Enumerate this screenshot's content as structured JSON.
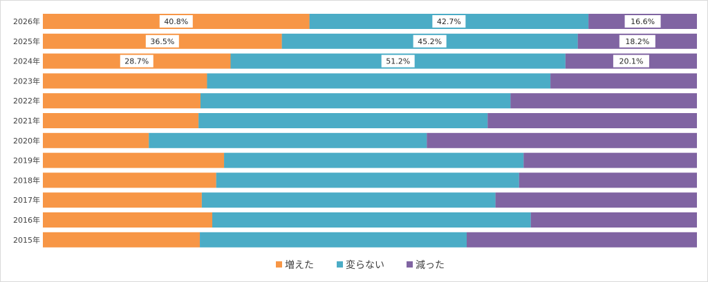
{
  "chart_data": {
    "type": "bar",
    "orientation": "horizontal",
    "stacked": "percent",
    "title": "",
    "categories": [
      "2026年",
      "2025年",
      "2024年",
      "2023年",
      "2022年",
      "2021年",
      "2020年",
      "2019年",
      "2018年",
      "2017年",
      "2016年",
      "2015年"
    ],
    "series": [
      {
        "name": "増えた",
        "color": "#F79646",
        "values": [
          40.8,
          36.5,
          28.7,
          25.1,
          24.1,
          23.8,
          16.2,
          27.7,
          26.5,
          24.3,
          25.9,
          24.0
        ],
        "labels": [
          "40.8%",
          "36.5%",
          "28.7%",
          "",
          "",
          "",
          "",
          "",
          "",
          "",
          "",
          ""
        ]
      },
      {
        "name": "変らない",
        "color": "#4BACC6",
        "values": [
          42.7,
          45.2,
          51.2,
          52.5,
          47.4,
          44.2,
          42.5,
          45.8,
          46.3,
          44.9,
          48.7,
          40.8
        ],
        "labels": [
          "42.7%",
          "45.2%",
          "51.2%",
          "",
          "",
          "",
          "",
          "",
          "",
          "",
          "",
          ""
        ]
      },
      {
        "name": "減った",
        "color": "#8064A2",
        "values": [
          16.6,
          18.2,
          20.1,
          22.4,
          28.5,
          32.0,
          41.3,
          26.5,
          27.2,
          30.8,
          25.4,
          35.2
        ],
        "labels": [
          "16.6%",
          "18.2%",
          "20.1%",
          "",
          "",
          "",
          "",
          "",
          "",
          "",
          "",
          ""
        ]
      }
    ],
    "xlim": [
      0,
      100
    ],
    "grid": false,
    "legend": "bottom"
  }
}
